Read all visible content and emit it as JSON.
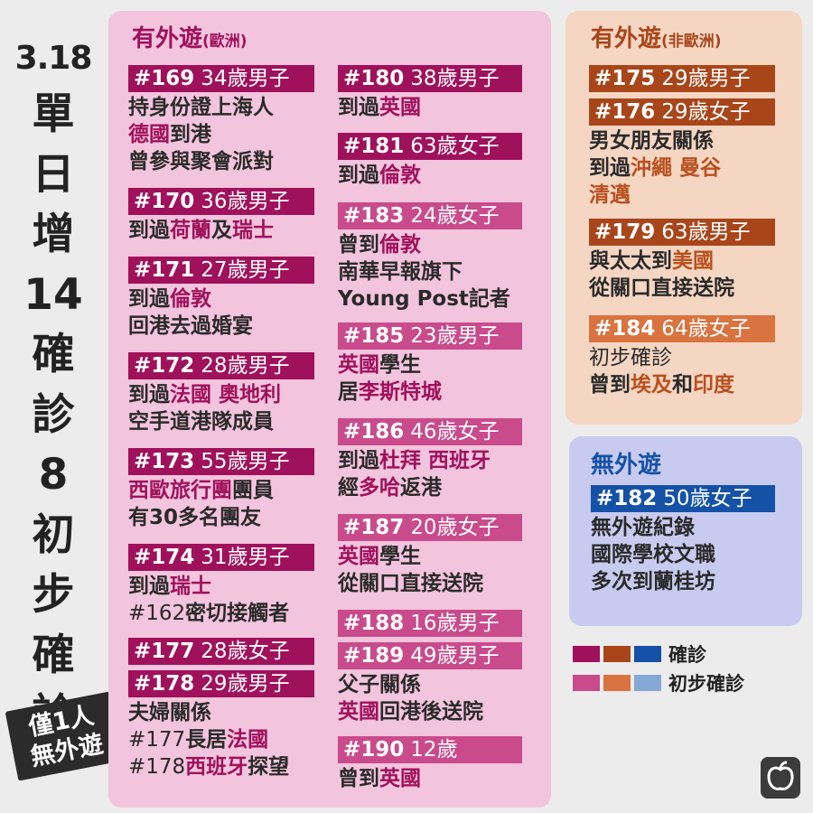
{
  "side_title": {
    "date": "3.18",
    "chars": [
      "單",
      "日",
      "增",
      "14",
      "確",
      "診",
      "8",
      "初",
      "步",
      "確",
      "診"
    ]
  },
  "stamp": {
    "line1": "僅1人",
    "line2": "無外遊"
  },
  "colors": {
    "eu_confirmed": "#a0115c",
    "eu_prelim": "#c94b8c",
    "noneu_confirmed": "#a8461a",
    "noneu_prelim": "#d97340",
    "local_confirmed": "#1552a7",
    "local_prelim": "#86a8d6"
  },
  "panels": {
    "eu": {
      "title_main": "有外遊",
      "title_sub": "(歐洲)",
      "cases_left": [
        {
          "num": "#169",
          "desc": "34歲男子",
          "status": "confirmed",
          "lines": [
            [
              {
                "t": "持身份證上海人"
              }
            ],
            [
              {
                "t": "德國",
                "hl": true
              },
              {
                "t": "到港"
              }
            ],
            [
              {
                "t": "曾參與聚會派對"
              }
            ]
          ]
        },
        {
          "num": "#170",
          "desc": "36歲男子",
          "status": "confirmed",
          "lines": [
            [
              {
                "t": "到過"
              },
              {
                "t": "荷蘭",
                "hl": true
              },
              {
                "t": "及"
              },
              {
                "t": "瑞士",
                "hl": true
              }
            ]
          ]
        },
        {
          "num": "#171",
          "desc": "27歲男子",
          "status": "confirmed",
          "lines": [
            [
              {
                "t": "到過"
              },
              {
                "t": "倫敦",
                "hl": true
              }
            ],
            [
              {
                "t": "回港去過婚宴"
              }
            ]
          ]
        },
        {
          "num": "#172",
          "desc": "28歲男子",
          "status": "confirmed",
          "lines": [
            [
              {
                "t": "到過"
              },
              {
                "t": "法國 奧地利",
                "hl": true
              }
            ],
            [
              {
                "t": "空手道港隊成員"
              }
            ]
          ]
        },
        {
          "num": "#173",
          "desc": "55歲男子",
          "status": "confirmed",
          "lines": [
            [
              {
                "t": "西歐旅行團",
                "hl": true
              },
              {
                "t": "團員"
              }
            ],
            [
              {
                "t": "有30多名團友"
              }
            ]
          ]
        },
        {
          "num": "#174",
          "desc": "31歲男子",
          "status": "confirmed",
          "lines": [
            [
              {
                "t": "到過"
              },
              {
                "t": "瑞士",
                "hl": true
              }
            ],
            [
              {
                "t": "#162",
                "lite": true
              },
              {
                "t": "密切接觸者"
              }
            ]
          ]
        },
        {
          "num": "#177",
          "desc": "28歲女子",
          "status": "confirmed",
          "lines": []
        },
        {
          "num": "#178",
          "desc": "29歲男子",
          "status": "confirmed",
          "lines": [
            [
              {
                "t": "夫婦關係"
              }
            ],
            [
              {
                "t": "#177",
                "lite": true
              },
              {
                "t": "長居"
              },
              {
                "t": "法國",
                "hl": true
              }
            ],
            [
              {
                "t": "#178",
                "lite": true
              },
              {
                "t": "西班牙",
                "hl": true
              },
              {
                "t": "探望"
              }
            ]
          ]
        }
      ],
      "cases_right": [
        {
          "num": "#180",
          "desc": "38歲男子",
          "status": "confirmed",
          "lines": [
            [
              {
                "t": "到過"
              },
              {
                "t": "英國",
                "hl": true
              }
            ]
          ]
        },
        {
          "num": "#181",
          "desc": "63歲女子",
          "status": "confirmed",
          "lines": [
            [
              {
                "t": "到過"
              },
              {
                "t": "倫敦",
                "hl": true
              }
            ]
          ]
        },
        {
          "num": "#183",
          "desc": "24歲女子",
          "status": "prelim",
          "lines": [
            [
              {
                "t": "曾到"
              },
              {
                "t": "倫敦",
                "hl": true
              }
            ],
            [
              {
                "t": "南華早報旗下"
              }
            ],
            [
              {
                "t": "Young Post記者"
              }
            ]
          ]
        },
        {
          "num": "#185",
          "desc": "23歲男子",
          "status": "prelim",
          "lines": [
            [
              {
                "t": "英國",
                "hl": true
              },
              {
                "t": "學生"
              }
            ],
            [
              {
                "t": "居"
              },
              {
                "t": "李斯特城",
                "hl": true
              }
            ]
          ]
        },
        {
          "num": "#186",
          "desc": "46歲女子",
          "status": "prelim",
          "lines": [
            [
              {
                "t": "到過"
              },
              {
                "t": "杜拜 西班牙",
                "hl": true
              }
            ],
            [
              {
                "t": "經"
              },
              {
                "t": "多哈",
                "hl": true
              },
              {
                "t": "返港"
              }
            ]
          ]
        },
        {
          "num": "#187",
          "desc": "20歲女子",
          "status": "prelim",
          "lines": [
            [
              {
                "t": "英國",
                "hl": true
              },
              {
                "t": "學生"
              }
            ],
            [
              {
                "t": "從關口直接送院"
              }
            ]
          ]
        },
        {
          "num": "#188",
          "desc": "16歲男子",
          "status": "prelim",
          "lines": []
        },
        {
          "num": "#189",
          "desc": "49歲男子",
          "status": "prelim",
          "lines": [
            [
              {
                "t": "父子關係"
              }
            ],
            [
              {
                "t": "英國",
                "hl": true
              },
              {
                "t": "回港後送院"
              }
            ]
          ]
        },
        {
          "num": "#190",
          "desc": "12歲",
          "status": "prelim",
          "lines": [
            [
              {
                "t": "曾到"
              },
              {
                "t": "英國",
                "hl": true
              }
            ]
          ]
        }
      ]
    },
    "noneu": {
      "title_main": "有外遊",
      "title_sub": "(非歐洲)",
      "cases": [
        {
          "num": "#175",
          "desc": "29歲男子",
          "status": "confirmed",
          "lines": []
        },
        {
          "num": "#176",
          "desc": "29歲女子",
          "status": "confirmed",
          "lines": [
            [
              {
                "t": "男女朋友關係"
              }
            ],
            [
              {
                "t": "到過"
              },
              {
                "t": "沖繩 曼谷",
                "hl": true
              }
            ],
            [
              {
                "t": "清邁",
                "hl": true
              }
            ]
          ]
        },
        {
          "num": "#179",
          "desc": "63歲男子",
          "status": "confirmed",
          "lines": [
            [
              {
                "t": "與太太到"
              },
              {
                "t": "美國",
                "hl": true
              }
            ],
            [
              {
                "t": "從關口直接送院"
              }
            ]
          ]
        },
        {
          "num": "#184",
          "desc": "64歲女子",
          "status": "prelim",
          "lines": [
            [
              {
                "t": "初步確診",
                "lite": true
              }
            ],
            [
              {
                "t": "曾到"
              },
              {
                "t": "埃及",
                "hl": true
              },
              {
                "t": "和"
              },
              {
                "t": "印度",
                "hl": true
              }
            ]
          ]
        }
      ]
    },
    "local": {
      "title_main": "無外遊",
      "cases": [
        {
          "num": "#182",
          "desc": "50歲女子",
          "status": "confirmed",
          "lines": [
            [
              {
                "t": "無外遊紀錄"
              }
            ],
            [
              {
                "t": "國際學校文職"
              }
            ],
            [
              {
                "t": "多次到蘭桂坊"
              }
            ]
          ]
        }
      ]
    }
  },
  "legend": {
    "confirmed_label": "確診",
    "prelim_label": "初步確診"
  },
  "logo_icon": "apple-icon"
}
